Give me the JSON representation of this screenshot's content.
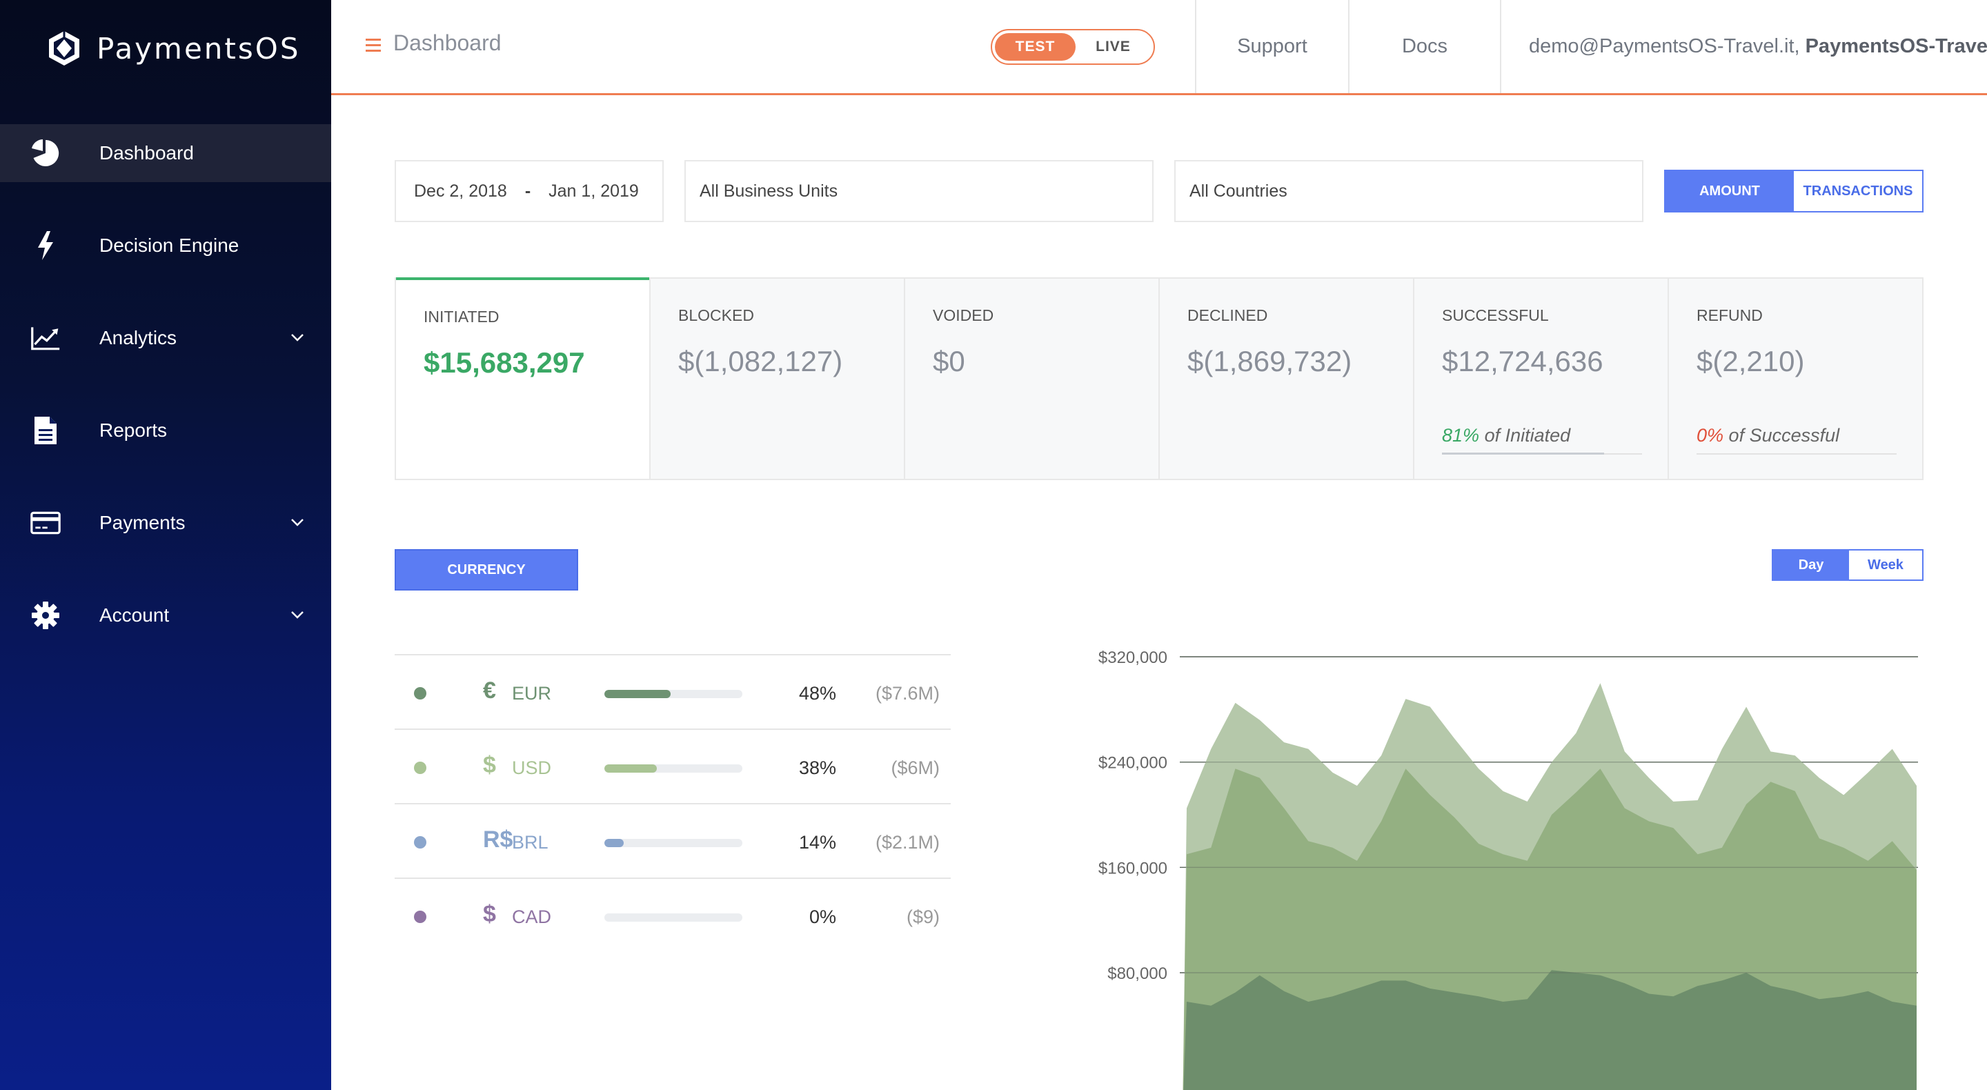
{
  "app": {
    "logo_text": "PaymentsOS"
  },
  "sidebar": {
    "items": [
      {
        "label": "Dashboard",
        "icon": "pie-chart-icon",
        "active": true,
        "expandable": false
      },
      {
        "label": "Decision Engine",
        "icon": "lightning-icon",
        "active": false,
        "expandable": false
      },
      {
        "label": "Analytics",
        "icon": "line-chart-icon",
        "active": false,
        "expandable": true
      },
      {
        "label": "Reports",
        "icon": "document-icon",
        "active": false,
        "expandable": false
      },
      {
        "label": "Payments",
        "icon": "credit-card-icon",
        "active": false,
        "expandable": true
      },
      {
        "label": "Account",
        "icon": "gear-icon",
        "active": false,
        "expandable": true
      }
    ]
  },
  "header": {
    "title": "Dashboard",
    "env_test": "TEST",
    "env_live": "LIVE",
    "env_selected": "TEST",
    "support": "Support",
    "docs": "Docs",
    "user_email": "demo@PaymentsOS-Travel.it,",
    "user_account": "PaymentsOS-Travel"
  },
  "filters": {
    "date_from": "Dec 2, 2018",
    "date_sep": "-",
    "date_to": "Jan 1, 2019",
    "business_units": "All Business Units",
    "countries": "All Countries",
    "metric_amount": "AMOUNT",
    "metric_transactions": "TRANSACTIONS"
  },
  "stats": {
    "initiated": {
      "label": "INITIATED",
      "value": "$15,683,297"
    },
    "blocked": {
      "label": "BLOCKED",
      "value": "$(1,082,127)"
    },
    "voided": {
      "label": "VOIDED",
      "value": "$0"
    },
    "declined": {
      "label": "DECLINED",
      "value": "$(1,869,732)"
    },
    "successful": {
      "label": "SUCCESSFUL",
      "value": "$12,724,636",
      "pct": "81%",
      "of_text": "of Initiated",
      "fraction": 0.81
    },
    "refund": {
      "label": "REFUND",
      "value": "$(2,210)",
      "pct": "0%",
      "of_text": "of Successful",
      "fraction": 0.0
    }
  },
  "currency": {
    "button": "CURRENCY",
    "rows": [
      {
        "symbol": "€",
        "code": "EUR",
        "pct": "48%",
        "fraction": 0.48,
        "amount": "($7.6M)",
        "color": "#6e9272"
      },
      {
        "symbol": "$",
        "code": "USD",
        "pct": "38%",
        "fraction": 0.38,
        "amount": "($6M)",
        "color": "#a9c494"
      },
      {
        "symbol": "R$",
        "code": "BRL",
        "pct": "14%",
        "fraction": 0.14,
        "amount": "($2.1M)",
        "color": "#8aa5cc"
      },
      {
        "symbol": "$",
        "code": "CAD",
        "pct": "0%",
        "fraction": 0.0,
        "amount": "($9)",
        "color": "#8f74a3"
      }
    ]
  },
  "period": {
    "day": "Day",
    "week": "Week",
    "selected": "Day"
  },
  "chart_data": {
    "type": "area",
    "y_ticks": [
      "$320,000",
      "$240,000",
      "$160,000",
      "$80,000"
    ],
    "y_tick_values": [
      320000,
      240000,
      160000,
      80000
    ],
    "series_colors": [
      "#b5c8aa",
      "#94b082",
      "#6e8e6c"
    ],
    "series": [
      {
        "values": [
          0,
          205000,
          250000,
          285000,
          272000,
          255000,
          250000,
          232000,
          222000,
          245000,
          288000,
          282000,
          258000,
          235000,
          218000,
          210000,
          240000,
          262000,
          300000,
          248000,
          228000,
          210000,
          211000,
          250000,
          282000,
          248000,
          245000,
          228000,
          215000,
          232000,
          250000,
          222000
        ]
      },
      {
        "values": [
          0,
          170000,
          175000,
          235000,
          228000,
          205000,
          180000,
          175000,
          165000,
          195000,
          235000,
          215000,
          198000,
          178000,
          170000,
          165000,
          200000,
          217000,
          235000,
          205000,
          195000,
          190000,
          170000,
          175000,
          208000,
          225000,
          218000,
          182000,
          175000,
          165000,
          180000,
          158000
        ]
      },
      {
        "values": [
          0,
          58000,
          55000,
          65000,
          78000,
          66000,
          58000,
          62000,
          68000,
          74000,
          74000,
          68000,
          65000,
          62000,
          58000,
          60000,
          82000,
          80000,
          78000,
          72000,
          64000,
          62000,
          70000,
          74000,
          80000,
          70000,
          66000,
          60000,
          62000,
          66000,
          58000,
          55000
        ]
      }
    ]
  }
}
